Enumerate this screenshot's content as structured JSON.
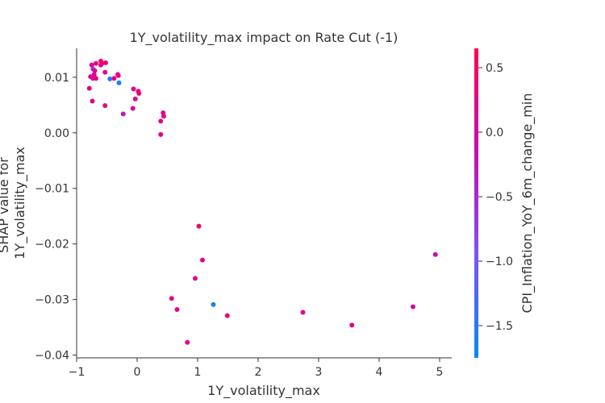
{
  "chart_data": {
    "type": "scatter",
    "title": "1Y_volatility_max impact on Rate Cut (-1)",
    "xlabel": "1Y_volatility_max",
    "ylabel_lines": [
      "SHAP value for",
      "1Y_volatility_max"
    ],
    "xlim": [
      -1.0,
      5.2
    ],
    "ylim": [
      -0.0405,
      0.0152
    ],
    "xticks": [
      -1,
      0,
      1,
      2,
      3,
      4,
      5
    ],
    "yticks": [
      0.01,
      0.0,
      -0.01,
      -0.02,
      -0.03,
      -0.04
    ],
    "xtick_labels": [
      "−1",
      "0",
      "1",
      "2",
      "3",
      "4",
      "5"
    ],
    "ytick_labels": [
      "0.01",
      "0.00",
      "−0.01",
      "−0.02",
      "−0.03",
      "−0.04"
    ],
    "colorbar": {
      "label": "CPI_Inflation_YoY_6m_change_min",
      "range": [
        -1.75,
        0.65
      ],
      "ticks": [
        0.5,
        0.0,
        -0.5,
        -1.0,
        -1.5
      ],
      "tick_labels": [
        "0.5",
        "0.0",
        "−0.5",
        "−1.0",
        "−1.5"
      ],
      "colormap": [
        "#008afb",
        "#7c52ff",
        "#c90bb4",
        "#ff0052"
      ]
    },
    "points": [
      {
        "x": -0.75,
        "y": 0.0122,
        "c": 0.2
      },
      {
        "x": -0.68,
        "y": 0.0125,
        "c": 0.3
      },
      {
        "x": -0.6,
        "y": 0.0129,
        "c": 0.5
      },
      {
        "x": -0.58,
        "y": 0.0125,
        "c": 0.35
      },
      {
        "x": -0.52,
        "y": 0.0126,
        "c": 0.45
      },
      {
        "x": -0.6,
        "y": 0.0122,
        "c": 0.25
      },
      {
        "x": -0.73,
        "y": 0.0115,
        "c": -0.6
      },
      {
        "x": -0.7,
        "y": 0.0112,
        "c": 0.1
      },
      {
        "x": -0.77,
        "y": 0.0101,
        "c": 0.0
      },
      {
        "x": -0.73,
        "y": 0.0098,
        "c": 0.1
      },
      {
        "x": -0.71,
        "y": 0.0105,
        "c": 0.15
      },
      {
        "x": -0.68,
        "y": 0.0098,
        "c": 0.2
      },
      {
        "x": -0.53,
        "y": 0.0109,
        "c": 0.2
      },
      {
        "x": -0.45,
        "y": 0.0097,
        "c": -1.55
      },
      {
        "x": -0.38,
        "y": 0.0098,
        "c": 0.3
      },
      {
        "x": -0.32,
        "y": 0.0105,
        "c": 0.1
      },
      {
        "x": -0.31,
        "y": 0.0103,
        "c": 0.2
      },
      {
        "x": -0.3,
        "y": 0.009,
        "c": -1.7
      },
      {
        "x": -0.79,
        "y": 0.008,
        "c": 0.2
      },
      {
        "x": -0.74,
        "y": 0.0057,
        "c": 0.2
      },
      {
        "x": -0.53,
        "y": 0.0049,
        "c": 0.3
      },
      {
        "x": -0.06,
        "y": 0.0079,
        "c": 0.2
      },
      {
        "x": 0.02,
        "y": 0.0075,
        "c": 0.25
      },
      {
        "x": 0.03,
        "y": 0.0071,
        "c": 0.3
      },
      {
        "x": -0.03,
        "y": 0.0061,
        "c": 0.2
      },
      {
        "x": -0.07,
        "y": 0.0044,
        "c": 0.0
      },
      {
        "x": -0.23,
        "y": 0.0034,
        "c": -0.3
      },
      {
        "x": 0.43,
        "y": 0.0036,
        "c": 0.2
      },
      {
        "x": 0.44,
        "y": 0.003,
        "c": 0.1
      },
      {
        "x": 0.39,
        "y": 0.0021,
        "c": 0.2
      },
      {
        "x": 0.39,
        "y": -0.0003,
        "c": 0.2
      },
      {
        "x": 1.02,
        "y": -0.0168,
        "c": 0.5
      },
      {
        "x": 1.08,
        "y": -0.0229,
        "c": 0.3
      },
      {
        "x": 0.96,
        "y": -0.0262,
        "c": 0.2
      },
      {
        "x": 4.93,
        "y": -0.0219,
        "c": -0.2
      },
      {
        "x": 0.57,
        "y": -0.0298,
        "c": 0.3
      },
      {
        "x": 0.66,
        "y": -0.0318,
        "c": 0.2
      },
      {
        "x": 1.26,
        "y": -0.0309,
        "c": -1.6
      },
      {
        "x": 1.49,
        "y": -0.0329,
        "c": 0.3
      },
      {
        "x": 2.74,
        "y": -0.0323,
        "c": 0.1
      },
      {
        "x": 3.55,
        "y": -0.0346,
        "c": 0.3
      },
      {
        "x": 4.56,
        "y": -0.0313,
        "c": 0.0
      },
      {
        "x": 0.83,
        "y": -0.0377,
        "c": 0.2
      }
    ]
  }
}
